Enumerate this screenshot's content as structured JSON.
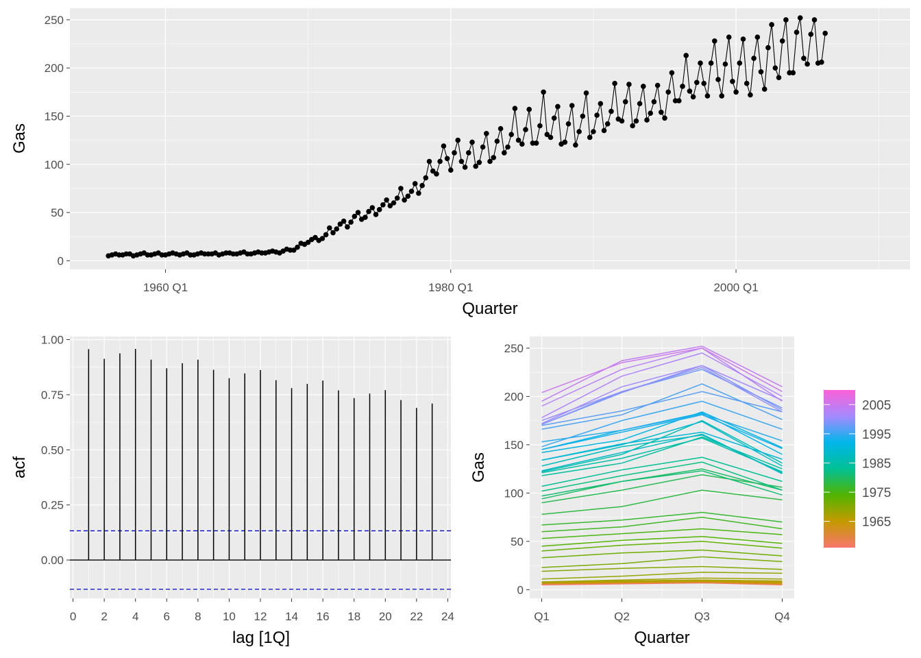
{
  "chart_data": [
    {
      "type": "line",
      "title": "",
      "xlabel": "Quarter",
      "ylabel": "Gas",
      "x_start": 1956.0,
      "x_step": 0.25,
      "x_range": [
        1953.3,
        2012.2
      ],
      "xticks": [
        {
          "value": 1960,
          "label": "1960 Q1"
        },
        {
          "value": 1980,
          "label": "1980 Q1"
        },
        {
          "value": 2000,
          "label": "2000 Q1"
        }
      ],
      "ylim": [
        -9,
        262
      ],
      "yticks": [
        0,
        50,
        100,
        150,
        200,
        250
      ],
      "yearly_quarters": [
        [
          5,
          6,
          7,
          6
        ],
        [
          6,
          7,
          7,
          5
        ],
        [
          6,
          7,
          8,
          6
        ],
        [
          6,
          7,
          8,
          6
        ],
        [
          6,
          7,
          8,
          7
        ],
        [
          6,
          7,
          8,
          6
        ],
        [
          6,
          7,
          8,
          7
        ],
        [
          7,
          7,
          8,
          6
        ],
        [
          7,
          8,
          8,
          7
        ],
        [
          7,
          8,
          9,
          7
        ],
        [
          7,
          8,
          9,
          8
        ],
        [
          8,
          9,
          10,
          9
        ],
        [
          8,
          10,
          12,
          11
        ],
        [
          11,
          14,
          18,
          17
        ],
        [
          19,
          22,
          24,
          21
        ],
        [
          23,
          27,
          34,
          29
        ],
        [
          33,
          38,
          41,
          35
        ],
        [
          40,
          46,
          50,
          43
        ],
        [
          45,
          51,
          55,
          48
        ],
        [
          53,
          58,
          63,
          57
        ],
        [
          60,
          65,
          75,
          63
        ],
        [
          67,
          72,
          80,
          70
        ],
        [
          78,
          86,
          103,
          93
        ],
        [
          90,
          103,
          119,
          106
        ],
        [
          94,
          112,
          125,
          103
        ],
        [
          97,
          112,
          123,
          98
        ],
        [
          102,
          118,
          132,
          103
        ],
        [
          107,
          124,
          137,
          112
        ],
        [
          118,
          131,
          158,
          125
        ],
        [
          121,
          136,
          157,
          122
        ],
        [
          122,
          140,
          175,
          131
        ],
        [
          128,
          148,
          160,
          121
        ],
        [
          123,
          142,
          161,
          120
        ],
        [
          134,
          150,
          174,
          128
        ],
        [
          134,
          151,
          163,
          135
        ],
        [
          142,
          155,
          184,
          147
        ],
        [
          145,
          165,
          183,
          140
        ],
        [
          145,
          163,
          181,
          146
        ],
        [
          153,
          165,
          182,
          154
        ],
        [
          148,
          175,
          195,
          166
        ],
        [
          166,
          181,
          213,
          176
        ],
        [
          170,
          185,
          205,
          184
        ],
        [
          171,
          205,
          228,
          188
        ],
        [
          171,
          204,
          232,
          186
        ],
        [
          175,
          205,
          230,
          184
        ],
        [
          172,
          210,
          232,
          196
        ],
        [
          178,
          221,
          245,
          200
        ],
        [
          190,
          228,
          250,
          195
        ],
        [
          195,
          237,
          252,
          210
        ],
        [
          204,
          235,
          250,
          205
        ]
      ],
      "extra_points": [
        206,
        236
      ]
    },
    {
      "type": "bar",
      "title": "",
      "xlabel": "lag [1Q]",
      "ylabel": "acf",
      "x_range": [
        -0.2,
        24.2
      ],
      "ylim": [
        -0.174,
        1.014
      ],
      "xticks": [
        0,
        2,
        4,
        6,
        8,
        10,
        12,
        14,
        16,
        18,
        20,
        22,
        24
      ],
      "yticks": [
        "0.00",
        "0.25",
        "0.50",
        "0.75",
        "1.00"
      ],
      "lags": [
        1,
        2,
        3,
        4,
        5,
        6,
        7,
        8,
        9,
        10,
        11,
        12,
        13,
        14,
        15,
        16,
        17,
        18,
        19,
        20,
        21,
        22,
        23
      ],
      "acf": [
        0.957,
        0.913,
        0.938,
        0.958,
        0.909,
        0.87,
        0.893,
        0.909,
        0.863,
        0.825,
        0.847,
        0.862,
        0.816,
        0.78,
        0.799,
        0.814,
        0.77,
        0.735,
        0.755,
        0.771,
        0.726,
        0.69,
        0.71
      ],
      "ci": 0.1325
    },
    {
      "type": "line",
      "title": "",
      "xlabel": "Quarter",
      "ylabel": "Gas",
      "categories": [
        "Q1",
        "Q2",
        "Q3",
        "Q4"
      ],
      "x_range": [
        0.85,
        4.15
      ],
      "ylim": [
        -9,
        262
      ],
      "yticks": [
        0,
        50,
        100,
        150,
        200,
        250
      ],
      "legend": {
        "position": "right",
        "min_year": 1956,
        "max_year": 2010,
        "labels": [
          "2005",
          "1995",
          "1985",
          "1975",
          "1965"
        ]
      },
      "series_source": "chart_data.0.yearly_quarters"
    }
  ],
  "colors": {
    "panel": "#EBEBEB",
    "grid": "#FFFFFF",
    "line": "#000000",
    "ci": "#0000CC",
    "gradient": [
      "#F8766D",
      "#C49A00",
      "#53B400",
      "#00C094",
      "#00B6EB",
      "#A58AFF",
      "#FB61D7"
    ]
  }
}
